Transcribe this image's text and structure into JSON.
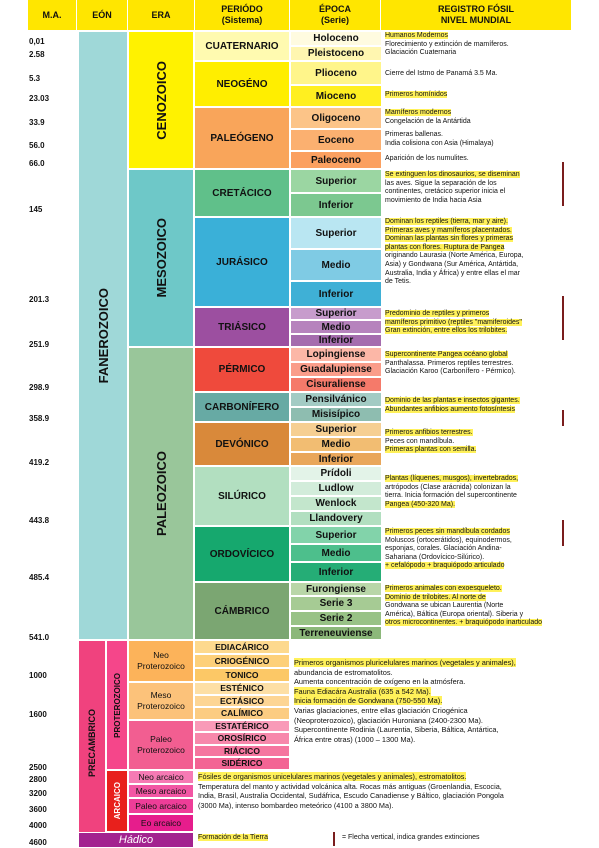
{
  "headers": {
    "ma": "M.A.",
    "eon": "EÓN",
    "era": "ERA",
    "periodo": "PERIÓDO\n(Sistema)",
    "epoca": "ÉPOCA\n(Serie)",
    "registro": "REGISTRO FÓSIL\nNIVEL MUNDIAL"
  },
  "ma": [
    "0,01",
    "2.58",
    "5.3",
    "23.03",
    "33.9",
    "56.0",
    "66.0",
    "145",
    "201.3",
    "251.9",
    "298.9",
    "358.9",
    "419.2",
    "443.8",
    "485.4",
    "541.0",
    "1000",
    "1600",
    "2500",
    "2800",
    "3200",
    "3600",
    "4000",
    "4600"
  ],
  "eons": {
    "fanerozoico": "FANEROZOICO",
    "precambrico": "PRECAMBRICO",
    "proterozoico": "PROTEROZOICO",
    "arcaico": "ARCAICO"
  },
  "eras": {
    "cenozoico": "CENOZOICO",
    "mesozoico": "MESOZOICO",
    "paleozoico": "PALEOZOICO"
  },
  "periods": {
    "cuaternario": "CUATERNARIO",
    "neogeno": "NEOGÉNO",
    "paleogeno": "PALEÓGENO",
    "cretacico": "CRETÁCICO",
    "jurasico": "JURÁSICO",
    "triasico": "TRIÁSICO",
    "permico": "PÉRMICO",
    "carbonifero": "CARBONÍFERO",
    "devonico": "DEVÓNICO",
    "silurico": "SILÚRICO",
    "ordovicico": "ORDOVÍCICO",
    "cambrico": "CÁMBRICO"
  },
  "epochs": {
    "holoceno": "Holoceno",
    "pleistoceno": "Pleistoceno",
    "plioceno": "Plioceno",
    "mioceno": "Mioceno",
    "oligoceno": "Oligoceno",
    "eoceno": "Eoceno",
    "paleoceno": "Paleoceno",
    "cret_sup": "Superior",
    "cret_inf": "Inferior",
    "jur_sup": "Superior",
    "jur_med": "Medio",
    "jur_inf": "Inferior",
    "tri_sup": "Superior",
    "tri_med": "Medio",
    "tri_inf": "Inferior",
    "lopingiense": "Lopingiense",
    "guadalupiense": "Guadalupiense",
    "cisuraliense": "Cisuraliense",
    "pensilvanico": "Pensilvánico",
    "misisipico": "Misisípico",
    "dev_sup": "Superior",
    "dev_med": "Medio",
    "dev_inf": "Inferior",
    "pridoli": "Prídoli",
    "ludlow": "Ludlow",
    "wenlock": "Wenlock",
    "llandovery": "Llandovery",
    "ord_sup": "Superior",
    "ord_med": "Medio",
    "ord_inf": "Inferior",
    "furongiense": "Furongiense",
    "serie3": "Serie 3",
    "serie2": "Serie 2",
    "terreneuviense": "Terreneuviense"
  },
  "precambrian": {
    "neo_prot": "Neo\nProterozoico",
    "meso_prot": "Meso\nProterozoico",
    "paleo_prot": "Paleo\nProterozoico",
    "ediacarico": "EDIACÁRICO",
    "criogenico": "CRIOGÉNICO",
    "tonico": "TONICO",
    "estenico": "ESTÉNICO",
    "ectasico": "ECTÁSICO",
    "calimico": "CALÍMICO",
    "estaterico": "ESTATÉRICO",
    "orosirico": "OROSÍRICO",
    "riacico": "RIÁCICO",
    "siderico": "SIDÉRICO",
    "neo_arc": "Neo arcaico",
    "meso_arc": "Meso arcaico",
    "paleo_arc": "Paleo arcaico",
    "eo_arc": "Eo arcaico",
    "hadico": "Hádico"
  },
  "registro": {
    "cuaternario": [
      "Humanos Modernos",
      "Florecimiento y extinción de mamíferos.",
      "Glaciación Cuaternaria"
    ],
    "plioceno": "Cierre del Istmo de Panamá 3.5 Ma.",
    "mioceno": "Primeros homínidos",
    "oligoceno": [
      "Mamíferos modernos",
      "Congelación de la Antártida"
    ],
    "eoceno": [
      "Primeras ballenas.",
      "India colisiona con Asia (Himalaya)"
    ],
    "paleoceno": "Aparición de los numulites.",
    "cretacico": [
      "Se extinguen los dinosaurios, se diseminan",
      "las aves. Sigue la separación de los",
      "continentes, cretácico superior inicia  el",
      "movimiento de India hacia Asia"
    ],
    "jurasico": [
      "Dominan los reptiles (tierra, mar y aire).",
      "Primeras aves y mamíferos placentados.",
      "Dominan las plantas sin flores y primeras",
      "plantas con flores. Ruptura de Pangea",
      "originando Laurasia (Norte América, Europa,",
      "Asia) y Gondwana (Sur América, Antártida,",
      "Australia, India y África) y entre ellas el mar",
      "de Tetis."
    ],
    "triasico": [
      "Predominio de reptiles y primeros",
      "mamíferos primitivo (reptiles \"mamiferoides\"",
      "Gran extinción, entre ellos los trilobites."
    ],
    "permico": [
      "Supercontinente Pangea océano global",
      "Panthalassa. Primeros reptiles terrestres.",
      "Glaciación Karoo (Carbonífero - Pérmico)."
    ],
    "carbonifero": [
      "Dominio de las plantas e insectos gigantes.",
      "Abundantes anfibios  aumento fotosíntesis"
    ],
    "devonico": [
      "Primeros anfibios terrestres.",
      "Peces con mandíbula.",
      "Primeras plantas con semilla."
    ],
    "silurico": [
      "Plantas (líquenes, musgos), invertebrados,",
      "artrópodos (Clase arácnida) colonizan la",
      "tierra. Inicia formación del supercontinente",
      "Pangea (450-320 Ma)."
    ],
    "ordovicico": [
      "Primeros peces sin mandíbula cordados",
      "Moluscos (ortocerátidos), equinodermos,",
      "esponjas, corales. Glaciación Andina-",
      "Sahariana (Ordovícico-Silúrico).",
      "+ cefalópodo + braquiópodo articulado"
    ],
    "cambrico": [
      "Primeros animales con exoesqueleto.",
      "Dominio de trilobites. Al norte de",
      "Gondwana se ubican Laurentia (Norte",
      "América), Báltica (Europa oriental). Siberia y",
      "otros microcontinentes.  + braquiópodo inarticulado"
    ],
    "proterozoico": [
      "Primeros organismos pluricelulares marinos (vegetales y animales),",
      "abundancia de estromatolitos.",
      "Aumenta concentración de oxígeno en la atmósfera.",
      "Fauna Ediacára Australia (635 a 542 Ma).",
      "Inicia formación de Gondwana (750-550 Ma).",
      "Varias glaciaciones, entre ellas glaciación Criogénica",
      "(Neoproterozoico), glaciación Huroniana (2400-2300 Ma).",
      "Supercontinente Rodinia (Laurentia, Siberia, Báltica, Antártica,",
      "África entre otras) (1000 – 1300 Ma)."
    ],
    "arcaico": [
      "Fósiles de organismos unicelulares marinos (vegetales y animales), estromatolitos.",
      "Temperatura del manto y actividad volcánica alta. Rocas más antiguas (Groenlandia, Escocia,",
      "India, Brasil, Australia Occidental, Sudáfrica, Escudo Canadiense y Báltico, glaciación Pongola",
      "(3000 Ma), intenso bombardeo meteórico (4100 a 3800 Ma)."
    ],
    "hadico": "Formación de la Tierra",
    "legend": "= Flecha vertical, indica  grandes extinciones"
  },
  "colors": {
    "header": "#ffe600",
    "fanerozoico": "#9fd8d8",
    "precambrico": "#f0427e",
    "cenozoico": "#fff200",
    "mesozoico": "#6ec8c8",
    "paleozoico": "#99c69a",
    "arrow": "#7a1d1d"
  }
}
